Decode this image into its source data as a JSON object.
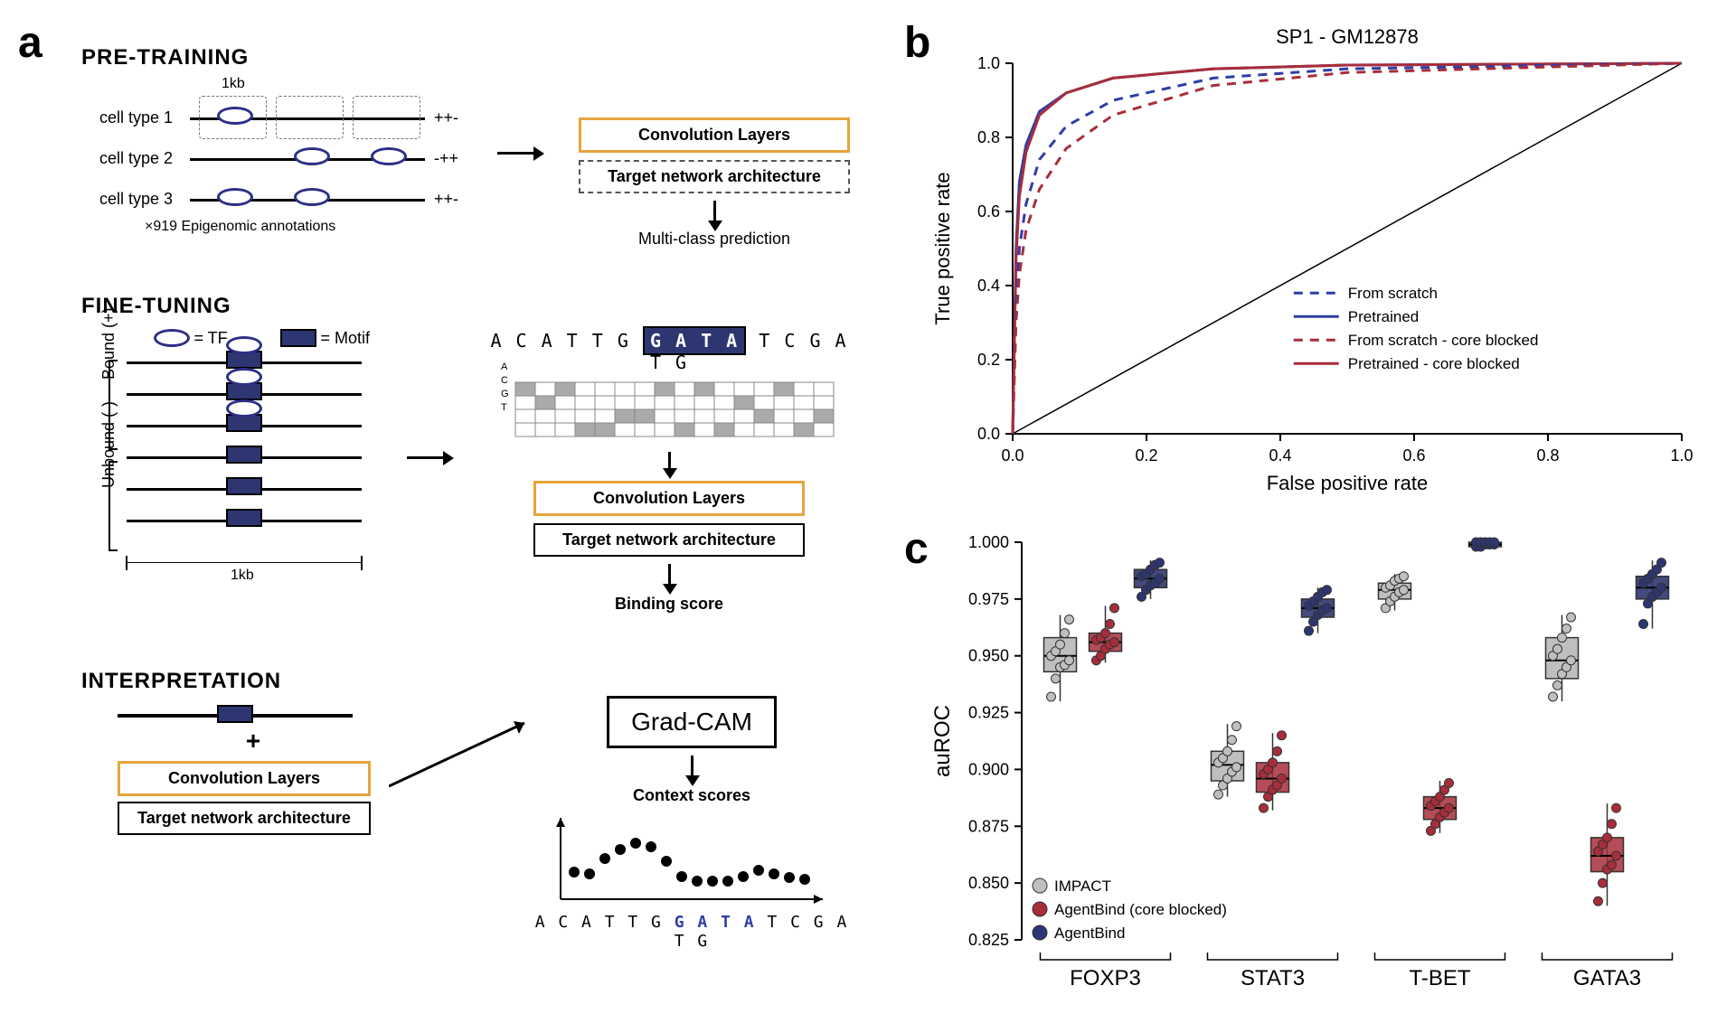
{
  "labels": {
    "a": "a",
    "b": "b",
    "c": "c"
  },
  "panel_a": {
    "sections": {
      "pretraining": "PRE-TRAINING",
      "finetuning": "FINE-TUNING",
      "interpretation": "INTERPRETATION"
    },
    "pretrain": {
      "kb": "1kb",
      "cell1": "cell type 1",
      "cell2": "cell type 2",
      "cell3": "cell type 3",
      "cell1_signs": "++-",
      "cell2_signs": "-++",
      "cell3_signs": "++-",
      "annotations": "×919 Epigenomic annotations",
      "conv": "Convolution Layers",
      "target": "Target network architecture",
      "multiclass": "Multi-class prediction"
    },
    "finetune": {
      "legend_tf": "= TF",
      "legend_motif": "= Motif",
      "bound": "Bound (+)",
      "unbound": "Unbound (-)",
      "kb": "1kb",
      "seq_left": "A C A T T G ",
      "seq_gata": "G A T A",
      "seq_right": " T C G A T G",
      "nucs": [
        "A",
        "C",
        "G",
        "T"
      ],
      "conv": "Convolution Layers",
      "target": "Target network architecture",
      "binding": "Binding score"
    },
    "interp": {
      "plus": "+",
      "conv": "Convolution Layers",
      "target": "Target network architecture",
      "gradcam": "Grad-CAM",
      "context": "Context scores",
      "seq_left": "A C A T T G ",
      "seq_gata": "G A T A",
      "seq_right": " T C G A T G"
    }
  },
  "panel_b": {
    "type": "roc",
    "title": "SP1 - GM12878",
    "xlabel": "False positive rate",
    "ylabel": "True positive rate",
    "xlim": [
      0,
      1.0
    ],
    "ylim": [
      0,
      1.0
    ],
    "ticks": [
      0.0,
      0.2,
      0.4,
      0.6,
      0.8,
      1.0
    ],
    "tick_fontsize": 18,
    "label_fontsize": 22,
    "title_fontsize": 22,
    "line_width": 3,
    "colors": {
      "scratch": "#2d3ea8",
      "pretrained": "#2d3ea8",
      "scratch_blocked": "#a82d3a",
      "pretrained_blocked": "#a82d3a",
      "diagonal": "#000000"
    },
    "legend": {
      "scratch": "From scratch",
      "pretrained": "Pretrained",
      "scratch_blocked": "From scratch - core blocked",
      "pretrained_blocked": "Pretrained - core blocked"
    },
    "curves": {
      "pretrained": [
        [
          0,
          0
        ],
        [
          0.005,
          0.5
        ],
        [
          0.01,
          0.68
        ],
        [
          0.02,
          0.78
        ],
        [
          0.04,
          0.87
        ],
        [
          0.08,
          0.92
        ],
        [
          0.15,
          0.96
        ],
        [
          0.3,
          0.985
        ],
        [
          0.5,
          0.995
        ],
        [
          1,
          1
        ]
      ],
      "pretrained_blocked": [
        [
          0,
          0
        ],
        [
          0.005,
          0.47
        ],
        [
          0.01,
          0.64
        ],
        [
          0.02,
          0.76
        ],
        [
          0.04,
          0.86
        ],
        [
          0.08,
          0.92
        ],
        [
          0.15,
          0.96
        ],
        [
          0.3,
          0.985
        ],
        [
          0.5,
          0.995
        ],
        [
          1,
          1
        ]
      ],
      "scratch": [
        [
          0,
          0
        ],
        [
          0.005,
          0.35
        ],
        [
          0.01,
          0.5
        ],
        [
          0.02,
          0.62
        ],
        [
          0.04,
          0.74
        ],
        [
          0.08,
          0.83
        ],
        [
          0.15,
          0.9
        ],
        [
          0.3,
          0.96
        ],
        [
          0.5,
          0.985
        ],
        [
          1,
          1
        ]
      ],
      "scratch_blocked": [
        [
          0,
          0
        ],
        [
          0.005,
          0.3
        ],
        [
          0.01,
          0.43
        ],
        [
          0.02,
          0.55
        ],
        [
          0.04,
          0.66
        ],
        [
          0.08,
          0.77
        ],
        [
          0.15,
          0.86
        ],
        [
          0.3,
          0.94
        ],
        [
          0.5,
          0.975
        ],
        [
          1,
          1
        ]
      ]
    }
  },
  "panel_c": {
    "type": "boxplot",
    "ylabel": "auROC",
    "ylim": [
      0.825,
      1.0
    ],
    "yticks": [
      0.825,
      0.85,
      0.875,
      0.9,
      0.925,
      0.95,
      0.975,
      1.0
    ],
    "ytick_labels": [
      "0.825",
      "0.850",
      "0.875",
      "0.900",
      "0.925",
      "0.950",
      "0.975",
      "1.000"
    ],
    "tick_fontsize": 18,
    "label_fontsize": 24,
    "categories": [
      "FOXP3",
      "STAT3",
      "T-BET",
      "GATA3"
    ],
    "cat_fontsize": 24,
    "groups": [
      "IMPACT",
      "AgentBind (core blocked)",
      "AgentBind"
    ],
    "colors": {
      "IMPACT": "#bfbfbf",
      "AgentBind (core blocked)": "#a82d3a",
      "AgentBind": "#2d3670"
    },
    "box_fill_opacity": {
      "IMPACT": 1.0,
      "AgentBind (core blocked)": 0.85,
      "AgentBind": 0.9
    },
    "point_radius": 5,
    "boxes": {
      "FOXP3": {
        "IMPACT": {
          "q1": 0.943,
          "med": 0.95,
          "q3": 0.958,
          "lo": 0.93,
          "hi": 0.968,
          "pts": [
            0.932,
            0.94,
            0.945,
            0.946,
            0.948,
            0.95,
            0.952,
            0.955,
            0.96,
            0.966
          ]
        },
        "AgentBind (core blocked)": {
          "q1": 0.952,
          "med": 0.956,
          "q3": 0.96,
          "lo": 0.947,
          "hi": 0.972,
          "pts": [
            0.948,
            0.95,
            0.953,
            0.955,
            0.956,
            0.957,
            0.958,
            0.96,
            0.964,
            0.971
          ]
        },
        "AgentBind": {
          "q1": 0.98,
          "med": 0.984,
          "q3": 0.988,
          "lo": 0.975,
          "hi": 0.992,
          "pts": [
            0.976,
            0.979,
            0.981,
            0.982,
            0.984,
            0.985,
            0.986,
            0.988,
            0.99,
            0.991
          ]
        }
      },
      "STAT3": {
        "IMPACT": {
          "q1": 0.895,
          "med": 0.902,
          "q3": 0.908,
          "lo": 0.888,
          "hi": 0.92,
          "pts": [
            0.889,
            0.893,
            0.896,
            0.899,
            0.901,
            0.903,
            0.905,
            0.908,
            0.913,
            0.919
          ]
        },
        "AgentBind (core blocked)": {
          "q1": 0.89,
          "med": 0.896,
          "q3": 0.903,
          "lo": 0.882,
          "hi": 0.916,
          "pts": [
            0.883,
            0.888,
            0.891,
            0.893,
            0.896,
            0.898,
            0.9,
            0.903,
            0.908,
            0.915
          ]
        },
        "AgentBind": {
          "q1": 0.967,
          "med": 0.971,
          "q3": 0.975,
          "lo": 0.96,
          "hi": 0.98,
          "pts": [
            0.961,
            0.965,
            0.968,
            0.97,
            0.971,
            0.972,
            0.974,
            0.976,
            0.978,
            0.979
          ]
        }
      },
      "T-BET": {
        "IMPACT": {
          "q1": 0.975,
          "med": 0.979,
          "q3": 0.982,
          "lo": 0.97,
          "hi": 0.986,
          "pts": [
            0.971,
            0.974,
            0.976,
            0.978,
            0.979,
            0.98,
            0.981,
            0.983,
            0.984,
            0.985
          ]
        },
        "AgentBind (core blocked)": {
          "q1": 0.878,
          "med": 0.883,
          "q3": 0.888,
          "lo": 0.872,
          "hi": 0.895,
          "pts": [
            0.873,
            0.876,
            0.879,
            0.881,
            0.883,
            0.884,
            0.886,
            0.888,
            0.891,
            0.894
          ]
        },
        "AgentBind": {
          "q1": 0.998,
          "med": 0.999,
          "q3": 1.0,
          "lo": 0.997,
          "hi": 1.0,
          "pts": [
            0.998,
            0.998,
            0.999,
            0.999,
            0.999,
            1.0,
            1.0,
            1.0,
            1.0,
            1.0
          ]
        }
      },
      "GATA3": {
        "IMPACT": {
          "q1": 0.94,
          "med": 0.948,
          "q3": 0.958,
          "lo": 0.93,
          "hi": 0.968,
          "pts": [
            0.932,
            0.937,
            0.942,
            0.945,
            0.948,
            0.95,
            0.953,
            0.958,
            0.962,
            0.967
          ]
        },
        "AgentBind (core blocked)": {
          "q1": 0.855,
          "med": 0.862,
          "q3": 0.87,
          "lo": 0.84,
          "hi": 0.885,
          "pts": [
            0.842,
            0.85,
            0.856,
            0.858,
            0.862,
            0.864,
            0.867,
            0.87,
            0.876,
            0.883
          ]
        },
        "AgentBind": {
          "q1": 0.975,
          "med": 0.98,
          "q3": 0.985,
          "lo": 0.962,
          "hi": 0.992,
          "pts": [
            0.964,
            0.973,
            0.976,
            0.978,
            0.98,
            0.982,
            0.984,
            0.986,
            0.988,
            0.991
          ]
        }
      }
    }
  }
}
